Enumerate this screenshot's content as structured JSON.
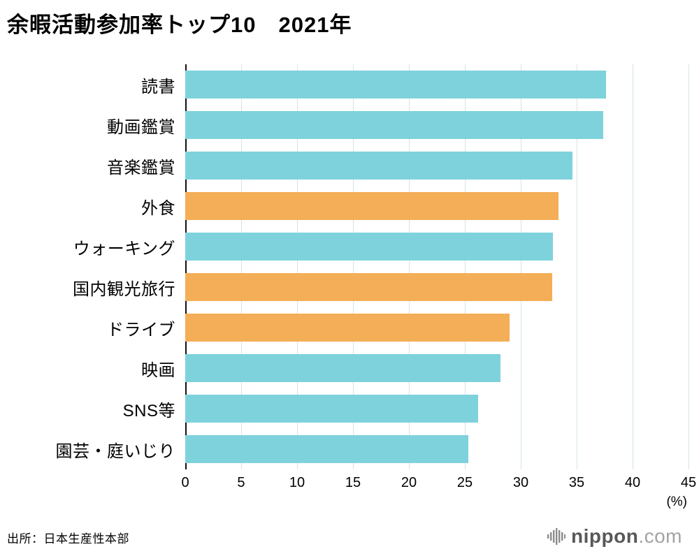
{
  "title": "余暇活動参加率トップ10　2021年",
  "source": "出所：日本生産性本部",
  "unit_label": "(%)",
  "logo": {
    "brand": "nippon",
    "tld": ".com"
  },
  "chart_data": {
    "type": "bar",
    "orientation": "horizontal",
    "title": "余暇活動参加率トップ10　2021年",
    "categories": [
      "読書",
      "動画鑑賞",
      "音楽鑑賞",
      "外食",
      "ウォーキング",
      "国内観光旅行",
      "ドライブ",
      "映画",
      "SNS等",
      "園芸・庭いじり"
    ],
    "values": [
      37.6,
      37.4,
      34.6,
      33.4,
      32.9,
      32.8,
      29.0,
      28.2,
      26.2,
      25.3
    ],
    "bar_color_keys": [
      "teal",
      "teal",
      "teal",
      "orange",
      "teal",
      "orange",
      "orange",
      "teal",
      "teal",
      "teal"
    ],
    "palette": {
      "teal": "#7ed2dc",
      "orange": "#f4ae57"
    },
    "xlim": [
      0,
      45
    ],
    "xticks": [
      0,
      5,
      10,
      15,
      20,
      25,
      30,
      35,
      40,
      45
    ],
    "xlabel": "(%)",
    "grid": true,
    "legend": false
  }
}
